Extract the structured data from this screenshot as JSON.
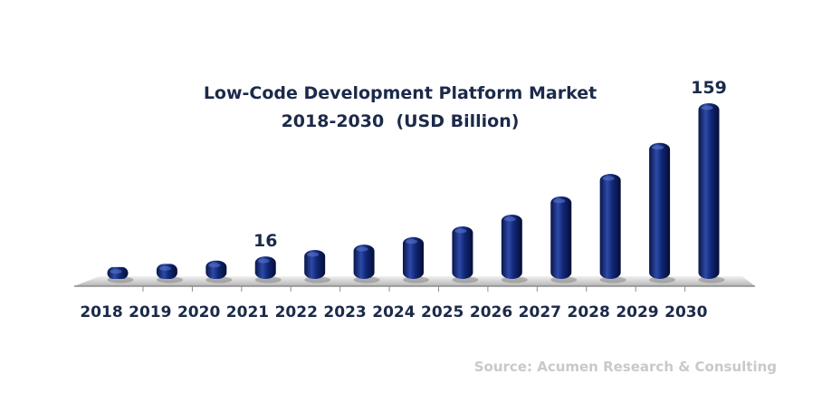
{
  "chart_data": {
    "type": "bar",
    "title": "Low-Code Development Platform Market",
    "subtitle": "2018-2030  (USD Billion)",
    "categories": [
      "2018",
      "2019",
      "2020",
      "2021",
      "2022",
      "2023",
      "2024",
      "2025",
      "2026",
      "2027",
      "2028",
      "2029",
      "2030"
    ],
    "values": [
      6,
      9,
      12,
      16,
      22,
      27,
      34,
      44,
      55,
      72,
      93,
      122,
      159
    ],
    "data_labels": [
      {
        "category": "2021",
        "text": "16"
      },
      {
        "category": "2030",
        "text": "159"
      }
    ],
    "ylim": [
      0,
      159
    ],
    "grid": false,
    "bar_color": "#0d1f66",
    "bar_highlight_color": "#3553b8",
    "text_color": "#1b2a4a",
    "source": "Source: Acumen Research & Consulting",
    "source_color": "#c9c9c9"
  }
}
